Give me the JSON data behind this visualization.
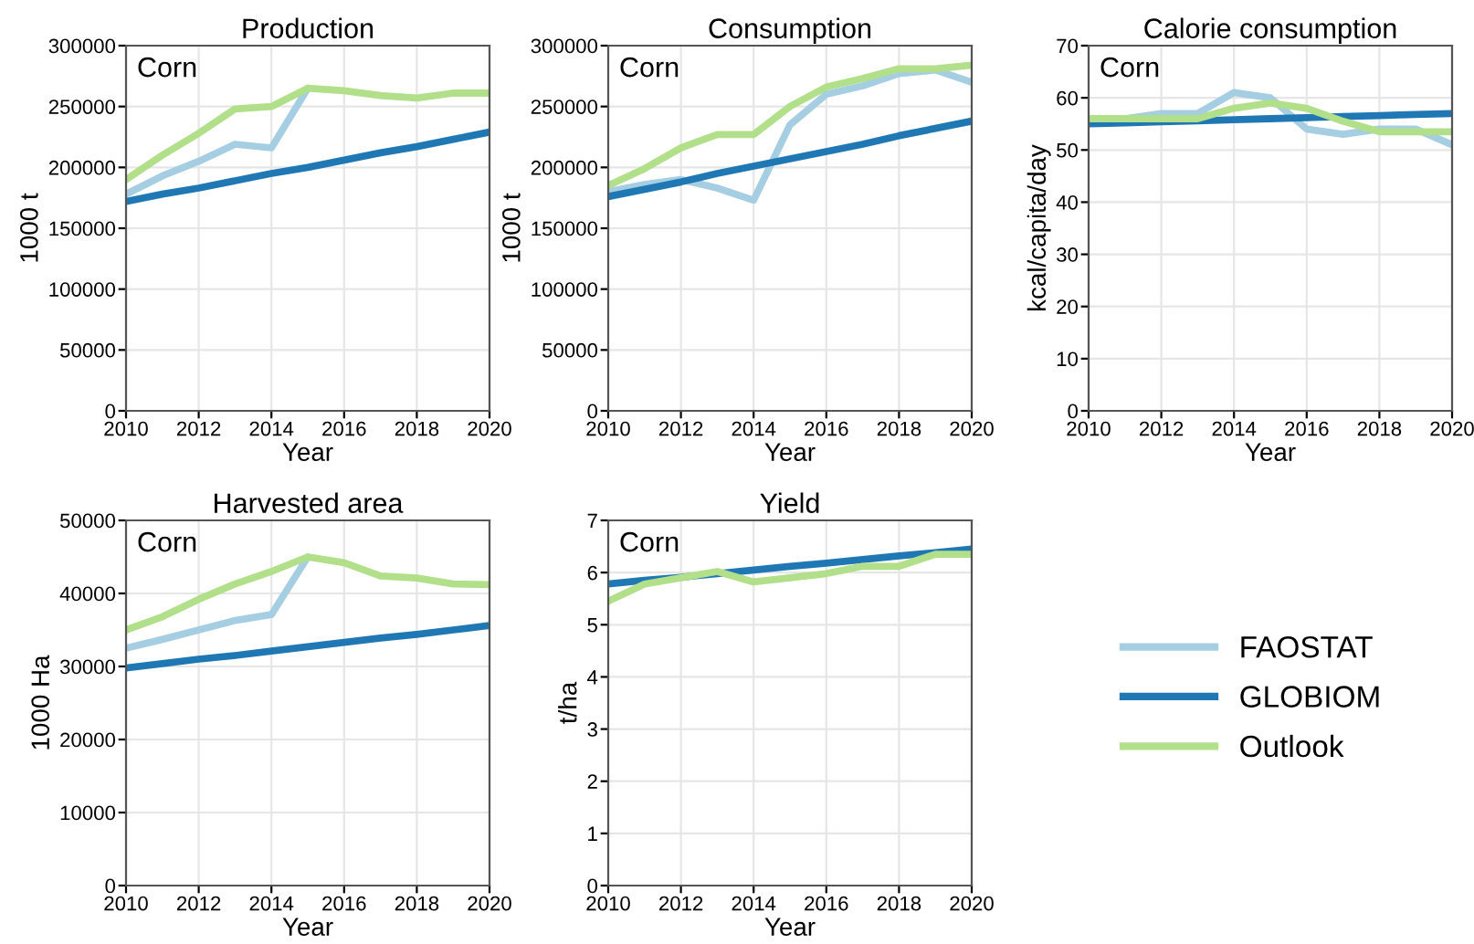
{
  "chart_data": [
    {
      "type": "line",
      "title": "Production",
      "xlabel": "Year",
      "ylabel": "1000 t",
      "annotations": [
        "Corn"
      ],
      "xlim": [
        2010,
        2020
      ],
      "xticks": [
        2010,
        2012,
        2014,
        2016,
        2018,
        2020
      ],
      "ylim": [
        0,
        300000
      ],
      "yticks": [
        0,
        50000,
        100000,
        150000,
        200000,
        250000,
        300000
      ],
      "grid": true,
      "legend": "right",
      "x": [
        2010,
        2011,
        2012,
        2013,
        2014,
        2015,
        2016,
        2017,
        2018,
        2019,
        2020
      ],
      "series": [
        {
          "name": "FAOSTAT",
          "color": "#a6cee3",
          "values": [
            178000,
            193000,
            205000,
            219000,
            216000,
            265000,
            null,
            null,
            null,
            null,
            null
          ]
        },
        {
          "name": "GLOBIOM",
          "color": "#1f78b4",
          "values": [
            172000,
            178000,
            183000,
            189000,
            195000,
            200000,
            206000,
            212000,
            217000,
            223000,
            229000
          ]
        },
        {
          "name": "Outlook",
          "color": "#b2df8a",
          "values": [
            190000,
            210000,
            228000,
            248000,
            250000,
            265000,
            263000,
            259000,
            257000,
            261000,
            261000
          ]
        }
      ]
    },
    {
      "type": "line",
      "title": "Consumption",
      "xlabel": "Year",
      "ylabel": "1000 t",
      "annotations": [
        "Corn"
      ],
      "xlim": [
        2010,
        2020
      ],
      "xticks": [
        2010,
        2012,
        2014,
        2016,
        2018,
        2020
      ],
      "ylim": [
        0,
        300000
      ],
      "yticks": [
        0,
        50000,
        100000,
        150000,
        200000,
        250000,
        300000
      ],
      "grid": true,
      "x": [
        2010,
        2011,
        2012,
        2013,
        2014,
        2015,
        2016,
        2017,
        2018,
        2019,
        2020
      ],
      "series": [
        {
          "color": "#a6cee3",
          "values": [
            180000,
            186000,
            190000,
            183000,
            173000,
            235000,
            260000,
            267000,
            277000,
            280000,
            270000
          ]
        },
        {
          "color": "#1f78b4",
          "values": [
            176000,
            182000,
            188000,
            195000,
            201000,
            207000,
            213000,
            219000,
            226000,
            232000,
            238000
          ]
        },
        {
          "color": "#b2df8a",
          "values": [
            185000,
            199000,
            216000,
            227000,
            227000,
            250000,
            266000,
            273000,
            281000,
            281000,
            284000
          ]
        }
      ]
    },
    {
      "type": "line",
      "title": "Calorie consumption",
      "xlabel": "Year",
      "ylabel": "kcal/capita/day",
      "annotations": [
        "Corn"
      ],
      "xlim": [
        2010,
        2020
      ],
      "xticks": [
        2010,
        2012,
        2014,
        2016,
        2018,
        2020
      ],
      "ylim": [
        0,
        70
      ],
      "yticks": [
        0,
        10,
        20,
        30,
        40,
        50,
        60,
        70
      ],
      "grid": true,
      "x": [
        2010,
        2011,
        2012,
        2013,
        2014,
        2015,
        2016,
        2017,
        2018,
        2019,
        2020
      ],
      "series": [
        {
          "color": "#a6cee3",
          "values": [
            56,
            56,
            57,
            57,
            61,
            60,
            54,
            53,
            54,
            54,
            51
          ]
        },
        {
          "color": "#1f78b4",
          "values": [
            55,
            55.2,
            55.4,
            55.6,
            55.8,
            56,
            56.2,
            56.4,
            56.6,
            56.8,
            57
          ]
        },
        {
          "color": "#b2df8a",
          "values": [
            56,
            56,
            56,
            56,
            58,
            59,
            58,
            55.5,
            53.5,
            53.5,
            53.5
          ]
        }
      ]
    },
    {
      "type": "line",
      "title": "Harvested area",
      "xlabel": "Year",
      "ylabel": "1000 Ha",
      "annotations": [
        "Corn"
      ],
      "xlim": [
        2010,
        2020
      ],
      "xticks": [
        2010,
        2012,
        2014,
        2016,
        2018,
        2020
      ],
      "ylim": [
        0,
        50000
      ],
      "yticks": [
        0,
        10000,
        20000,
        30000,
        40000,
        50000
      ],
      "grid": true,
      "x": [
        2010,
        2011,
        2012,
        2013,
        2014,
        2015,
        2016,
        2017,
        2018,
        2019,
        2020
      ],
      "series": [
        {
          "color": "#a6cee3",
          "values": [
            32500,
            33700,
            35000,
            36300,
            37100,
            45000,
            null,
            null,
            null,
            null,
            null
          ]
        },
        {
          "color": "#1f78b4",
          "values": [
            29800,
            30400,
            31000,
            31500,
            32100,
            32700,
            33300,
            33900,
            34400,
            35000,
            35600
          ]
        },
        {
          "color": "#b2df8a",
          "values": [
            35000,
            36800,
            39200,
            41300,
            43000,
            45000,
            44200,
            42400,
            42100,
            41300,
            41200
          ]
        }
      ]
    },
    {
      "type": "line",
      "title": "Yield",
      "xlabel": "Year",
      "ylabel": "t/ha",
      "annotations": [
        "Corn"
      ],
      "xlim": [
        2010,
        2020
      ],
      "xticks": [
        2010,
        2012,
        2014,
        2016,
        2018,
        2020
      ],
      "ylim": [
        0,
        7
      ],
      "yticks": [
        0,
        1,
        2,
        3,
        4,
        5,
        6,
        7
      ],
      "grid": true,
      "x": [
        2010,
        2011,
        2012,
        2013,
        2014,
        2015,
        2016,
        2017,
        2018,
        2019,
        2020
      ],
      "series": [
        {
          "color": "#1f78b4",
          "values": [
            5.78,
            5.85,
            5.91,
            5.98,
            6.05,
            6.12,
            6.18,
            6.25,
            6.32,
            6.38,
            6.45
          ]
        },
        {
          "color": "#b2df8a",
          "values": [
            5.45,
            5.78,
            5.9,
            6.02,
            5.82,
            5.9,
            5.98,
            6.12,
            6.12,
            6.35,
            6.35
          ]
        }
      ]
    }
  ]
}
